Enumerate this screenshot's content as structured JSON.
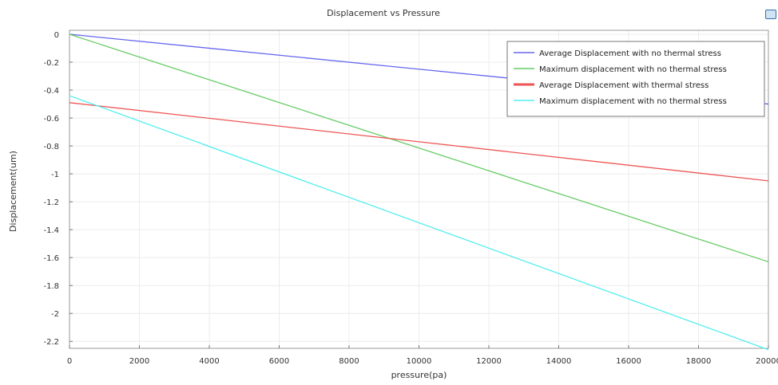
{
  "chart_data": {
    "type": "line",
    "title": "Displacement vs Pressure",
    "xlabel": "pressure(pa)",
    "ylabel": "Displacement(um)",
    "xlim": [
      0,
      20000
    ],
    "ylim": [
      -2.25,
      0
    ],
    "x_ticks": [
      0,
      2000,
      4000,
      6000,
      8000,
      10000,
      12000,
      14000,
      16000,
      18000,
      20000
    ],
    "y_ticks": [
      0,
      -0.2,
      -0.4,
      -0.6,
      -0.8,
      -1,
      -1.2,
      -1.4,
      -1.6,
      -1.8,
      -2,
      -2.2
    ],
    "grid": true,
    "legend_position": "top-right",
    "series": [
      {
        "name": "Average Displacement with no thermal stress",
        "color": "#6666ee",
        "x": [
          0,
          20000
        ],
        "y": [
          0,
          -0.5
        ]
      },
      {
        "name": "Maximum displacement with no thermal stress",
        "color": "#66cc66",
        "x": [
          0,
          20000
        ],
        "y": [
          0,
          -1.63
        ]
      },
      {
        "name": "Average Displacement with thermal stress",
        "color": "#ee5555",
        "x": [
          0,
          20000
        ],
        "y": [
          -0.49,
          -1.05
        ]
      },
      {
        "name": "Maximum displacement with no thermal stress",
        "color": "#55eeee",
        "x": [
          0,
          20000
        ],
        "y": [
          -0.44,
          -2.26
        ]
      }
    ]
  },
  "toolbar": {
    "export_icon": "export-icon"
  }
}
